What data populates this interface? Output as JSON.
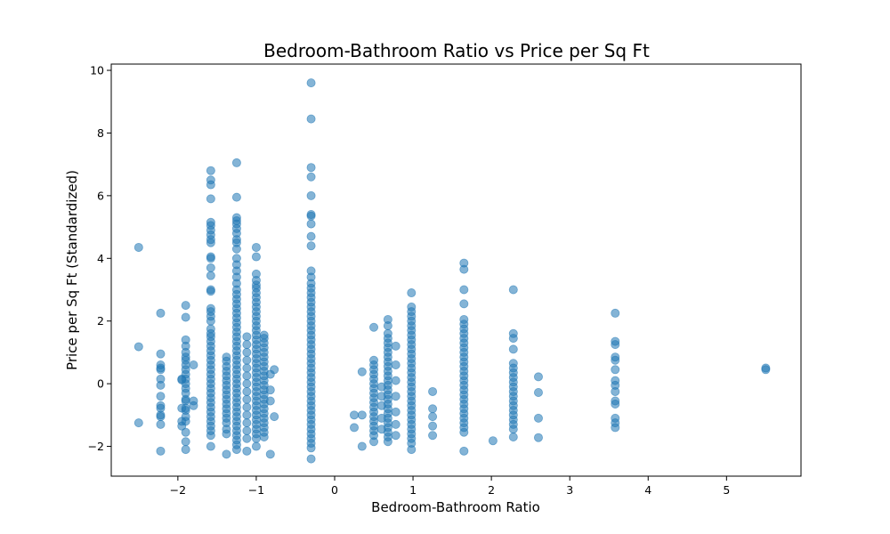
{
  "chart_data": {
    "type": "scatter",
    "title": "Bedroom-Bathroom Ratio vs Price per Sq Ft",
    "xlabel": "Bedroom-Bathroom Ratio",
    "ylabel": "Price per Sq Ft (Standardized)",
    "xlim": [
      -2.85,
      5.95
    ],
    "ylim": [
      -2.95,
      10.2
    ],
    "xticks": [
      -2,
      -1,
      0,
      1,
      2,
      3,
      4,
      5
    ],
    "xtick_labels": [
      "−2",
      "−1",
      "0",
      "1",
      "2",
      "3",
      "4",
      "5"
    ],
    "yticks": [
      -2,
      0,
      2,
      4,
      6,
      8,
      10
    ],
    "ytick_labels": [
      "−2",
      "0",
      "2",
      "4",
      "6",
      "8",
      "10"
    ],
    "grid": false,
    "marker_color": "#1f77b4",
    "marker_alpha": 0.55,
    "columns": [
      {
        "x": -2.5,
        "y": [
          4.35,
          1.18,
          -1.25
        ]
      },
      {
        "x": -2.22,
        "y": [
          2.25,
          0.95,
          0.6,
          0.5,
          0.45,
          0.15,
          -0.05,
          -0.4,
          -0.7,
          -0.78,
          -1.0,
          -1.05,
          -1.3,
          -2.15
        ]
      },
      {
        "x": -1.95,
        "y": [
          0.15,
          0.12,
          -0.78,
          -1.2,
          -1.35
        ]
      },
      {
        "x": -1.9,
        "y": [
          2.5,
          2.12,
          1.4,
          1.2,
          1.0,
          0.85,
          0.75,
          0.6,
          0.45,
          0.3,
          0.15,
          0.0,
          -0.15,
          -0.3,
          -0.5,
          -0.55,
          -0.78,
          -0.85,
          -1.05,
          -1.2,
          -1.55,
          -1.85,
          -2.1
        ]
      },
      {
        "x": -1.8,
        "y": [
          0.6,
          -0.55,
          -0.7
        ]
      },
      {
        "x": -1.58,
        "y": [
          6.8,
          6.5,
          6.35,
          5.9,
          5.15,
          5.05,
          4.9,
          4.75,
          4.6,
          4.5,
          4.05,
          4.0,
          3.7,
          3.45,
          3.0,
          2.95,
          2.4,
          2.3,
          2.15,
          2.0,
          1.75,
          1.6,
          1.5,
          1.35,
          1.2,
          1.05,
          0.9,
          0.75,
          0.6,
          0.45,
          0.3,
          0.15,
          0.0,
          -0.15,
          -0.3,
          -0.45,
          -0.6,
          -0.75,
          -0.9,
          -1.05,
          -1.2,
          -1.35,
          -1.5,
          -1.65,
          -2.0
        ]
      },
      {
        "x": -1.38,
        "y": [
          0.85,
          0.72,
          0.55,
          0.4,
          0.25,
          0.1,
          -0.05,
          -0.2,
          -0.35,
          -0.5,
          -0.65,
          -0.8,
          -0.95,
          -1.1,
          -1.25,
          -1.45,
          -1.6,
          -2.25
        ]
      },
      {
        "x": -1.25,
        "y": [
          7.05,
          5.95,
          5.3,
          5.2,
          5.1,
          4.95,
          4.8,
          4.6,
          4.5,
          4.3,
          4.0,
          3.8,
          3.6,
          3.4,
          3.2,
          3.0,
          2.85,
          2.7,
          2.55,
          2.4,
          2.25,
          2.1,
          1.95,
          1.8,
          1.65,
          1.5,
          1.35,
          1.2,
          1.05,
          0.9,
          0.75,
          0.6,
          0.45,
          0.3,
          0.15,
          0.0,
          -0.15,
          -0.3,
          -0.45,
          -0.6,
          -0.75,
          -0.9,
          -1.05,
          -1.2,
          -1.35,
          -1.5,
          -1.65,
          -1.8,
          -1.95,
          -2.1
        ]
      },
      {
        "x": -1.12,
        "y": [
          1.5,
          1.25,
          1.0,
          0.75,
          0.5,
          0.25,
          0.0,
          -0.25,
          -0.5,
          -0.75,
          -1.0,
          -1.25,
          -1.5,
          -1.75,
          -2.15
        ]
      },
      {
        "x": -1.0,
        "y": [
          4.35,
          4.05,
          3.5,
          3.3,
          3.15,
          3.05,
          2.9,
          2.75,
          2.6,
          2.45,
          2.3,
          2.15,
          2.0,
          1.85,
          1.7,
          1.55,
          1.4,
          1.25,
          1.1,
          0.95,
          0.8,
          0.65,
          0.5,
          0.35,
          0.2,
          0.05,
          -0.1,
          -0.25,
          -0.4,
          -0.55,
          -0.7,
          -0.85,
          -1.0,
          -1.15,
          -1.3,
          -1.45,
          -1.6,
          -1.75,
          -2.0
        ]
      },
      {
        "x": -0.9,
        "y": [
          1.55,
          1.45,
          1.3,
          1.15,
          1.0,
          0.85,
          0.7,
          0.55,
          0.4,
          0.25,
          0.1,
          -0.05,
          -0.2,
          -0.35,
          -0.5,
          -0.65,
          -0.8,
          -0.95,
          -1.1,
          -1.25,
          -1.4,
          -1.55,
          -1.7
        ]
      },
      {
        "x": -0.82,
        "y": [
          0.3,
          -0.2,
          -0.55,
          -2.25
        ]
      },
      {
        "x": -0.77,
        "y": [
          0.45,
          -1.05
        ]
      },
      {
        "x": -0.3,
        "y": [
          9.6,
          8.45,
          6.9,
          6.6,
          6.0,
          5.4,
          5.35,
          5.1,
          4.7,
          4.4,
          3.6,
          3.4,
          3.2,
          3.05,
          2.9,
          2.75,
          2.6,
          2.45,
          2.3,
          2.15,
          2.0,
          1.85,
          1.7,
          1.55,
          1.4,
          1.25,
          1.1,
          0.95,
          0.8,
          0.65,
          0.5,
          0.35,
          0.2,
          0.05,
          -0.1,
          -0.25,
          -0.4,
          -0.55,
          -0.7,
          -0.85,
          -1.0,
          -1.15,
          -1.3,
          -1.45,
          -1.6,
          -1.75,
          -1.9,
          -2.05,
          -2.4
        ]
      },
      {
        "x": 0.25,
        "y": [
          -1.0,
          -1.4
        ]
      },
      {
        "x": 0.35,
        "y": [
          0.38,
          -1.0,
          -2.0
        ]
      },
      {
        "x": 0.5,
        "y": [
          1.8,
          0.75,
          0.6,
          0.45,
          0.3,
          0.15,
          0.0,
          -0.15,
          -0.3,
          -0.45,
          -0.6,
          -0.75,
          -0.9,
          -1.05,
          -1.2,
          -1.35,
          -1.5,
          -1.65,
          -1.85
        ]
      },
      {
        "x": 0.6,
        "y": [
          -0.1,
          -0.4,
          -0.7,
          -1.1,
          -1.45
        ]
      },
      {
        "x": 0.68,
        "y": [
          2.05,
          1.85,
          1.6,
          1.45,
          1.3,
          1.15,
          1.0,
          0.85,
          0.7,
          0.55,
          0.4,
          0.25,
          0.1,
          -0.05,
          -0.2,
          -0.35,
          -0.5,
          -0.65,
          -0.8,
          -0.95,
          -1.1,
          -1.25,
          -1.4,
          -1.55,
          -1.7,
          -1.85
        ]
      },
      {
        "x": 0.78,
        "y": [
          1.2,
          0.6,
          0.1,
          -0.4,
          -0.9,
          -1.3,
          -1.65
        ]
      },
      {
        "x": 0.98,
        "y": [
          2.9,
          2.45,
          2.3,
          2.15,
          2.0,
          1.85,
          1.7,
          1.55,
          1.4,
          1.25,
          1.1,
          0.95,
          0.8,
          0.65,
          0.5,
          0.35,
          0.2,
          0.05,
          -0.1,
          -0.25,
          -0.4,
          -0.55,
          -0.7,
          -0.85,
          -1.0,
          -1.15,
          -1.3,
          -1.45,
          -1.6,
          -1.75,
          -1.9,
          -2.1
        ]
      },
      {
        "x": 1.25,
        "y": [
          -0.25,
          -0.8,
          -1.05,
          -1.35,
          -1.65
        ]
      },
      {
        "x": 1.65,
        "y": [
          3.85,
          3.65,
          3.0,
          2.55,
          2.05,
          1.9,
          1.75,
          1.6,
          1.45,
          1.3,
          1.15,
          1.0,
          0.85,
          0.7,
          0.55,
          0.4,
          0.25,
          0.1,
          -0.05,
          -0.2,
          -0.35,
          -0.5,
          -0.65,
          -0.8,
          -0.95,
          -1.1,
          -1.25,
          -1.4,
          -1.55,
          -2.15
        ]
      },
      {
        "x": 2.02,
        "y": [
          -1.82
        ]
      },
      {
        "x": 2.28,
        "y": [
          3.0,
          1.6,
          1.45,
          1.1,
          0.65,
          0.5,
          0.35,
          0.2,
          0.05,
          -0.1,
          -0.25,
          -0.4,
          -0.55,
          -0.7,
          -0.85,
          -1.0,
          -1.15,
          -1.3,
          -1.45,
          -1.7
        ]
      },
      {
        "x": 2.6,
        "y": [
          0.22,
          -0.28,
          -1.1,
          -1.72
        ]
      },
      {
        "x": 3.58,
        "y": [
          2.25,
          1.35,
          1.25,
          0.85,
          0.75,
          0.45,
          0.1,
          -0.05,
          -0.25,
          -0.55,
          -0.65,
          -1.1,
          -1.25,
          -1.4
        ]
      },
      {
        "x": 5.5,
        "y": [
          0.5,
          0.45
        ]
      }
    ]
  }
}
